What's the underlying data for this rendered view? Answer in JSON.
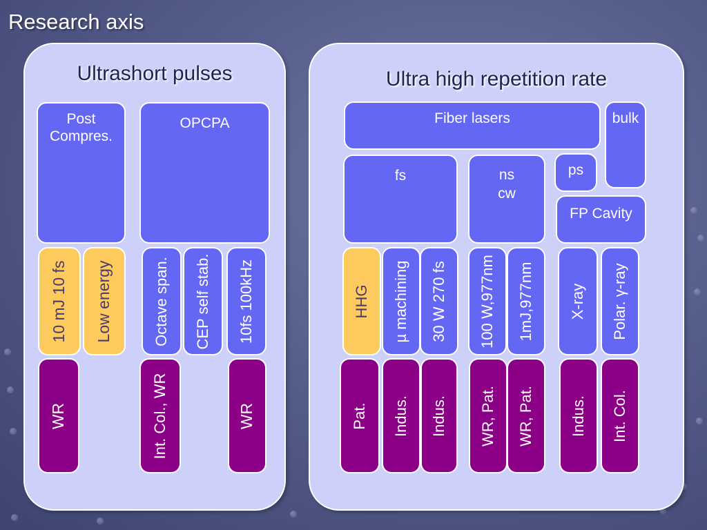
{
  "slide_title": "Research axis",
  "left_panel": {
    "heading": "Ultrashort pulses",
    "boxes": {
      "post_compres": "Post\nCompres.",
      "opcpa": "OPCPA",
      "mj_10fs": "10 mJ 10 fs",
      "low_energy": "Low energy",
      "octave_span": "Octave span.",
      "cep_self_stab": "CEP self stab.",
      "fs_100khz": "10fs 100kHz",
      "wr_1": "WR",
      "int_col_wr": "Int. Col., WR",
      "wr_2": "WR"
    }
  },
  "right_panel": {
    "heading": "Ultra high repetition rate",
    "boxes": {
      "fiber_lasers": "Fiber lasers",
      "bulk": "bulk",
      "fs": "fs",
      "ns_cw": "ns\ncw",
      "ps": "ps",
      "fp_cavity": "FP Cavity",
      "hhg": "HHG",
      "mu_machining": "µ machining",
      "w270fs": "30 W 270 fs",
      "w977nm": "100 W,977nm",
      "mj977nm": "1mJ,977nm",
      "xray": "X-ray",
      "polar_ray": "Polar. γ-ray",
      "pat": "Pat.",
      "indus_1": "Indus.",
      "indus_2": "Indus.",
      "wr_pat_1": "WR, Pat.",
      "wr_pat_2": "WR, Pat.",
      "indus_3": "Indus.",
      "int_col": "Int. Col."
    }
  },
  "colors": {
    "panel": "#cdd0f8",
    "category_box": "#6466f4",
    "highlight_box": "#fdca5e",
    "application_box": "#8c0088"
  }
}
